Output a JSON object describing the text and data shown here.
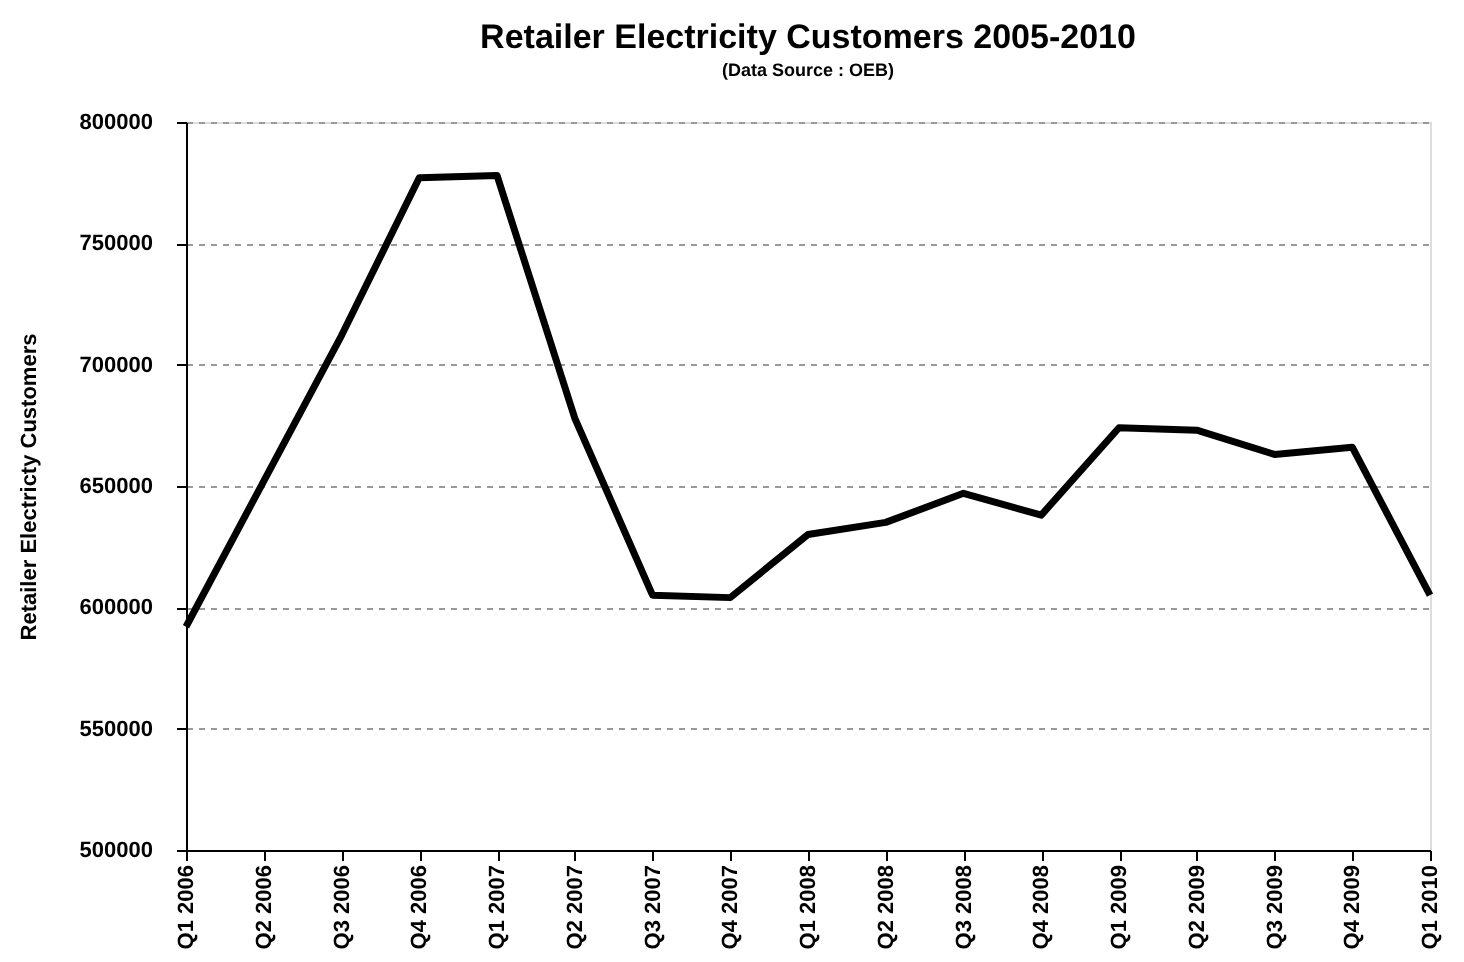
{
  "chart_data": {
    "type": "line",
    "title": "Retailer Electricity Customers 2005-2010",
    "subtitle": "(Data Source : OEB)",
    "ylabel": "Retailer Electricty Customers",
    "categories": [
      "Q1 2006",
      "Q2 2006",
      "Q3 2006",
      "Q4 2006",
      "Q1 2007",
      "Q2 2007",
      "Q3 2007",
      "Q4 2007",
      "Q1 2008",
      "Q2 2008",
      "Q3 2008",
      "Q4 2008",
      "Q1 2009",
      "Q2 2009",
      "Q3 2009",
      "Q4 2009",
      "Q1 2010"
    ],
    "series": [
      {
        "color": "#000000",
        "values": [
          592000,
          652000,
          712000,
          777000,
          778000,
          678000,
          605000,
          604000,
          630000,
          635000,
          647000,
          638000,
          674000,
          673000,
          663000,
          666000,
          605000
        ]
      }
    ],
    "ylim": [
      500000,
      800000
    ],
    "yticks": [
      500000,
      550000,
      600000,
      650000,
      700000,
      750000,
      800000
    ],
    "grid": "y",
    "marker": "none",
    "line_style": "solid"
  }
}
